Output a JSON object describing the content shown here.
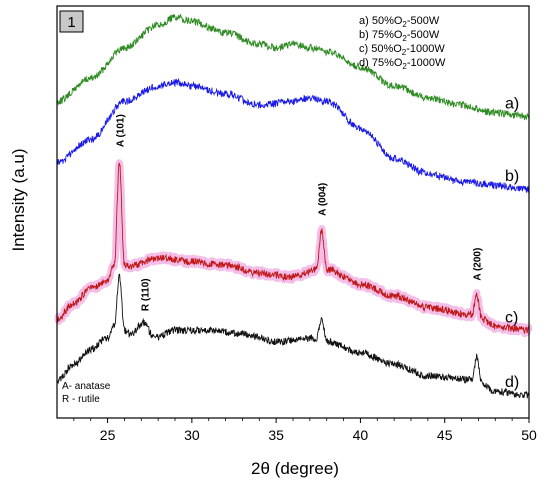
{
  "chart_data": {
    "type": "line",
    "panel_label": "1",
    "xlabel": "2θ (degree)",
    "ylabel": "Intensity (a.u)",
    "xlim": [
      22,
      50
    ],
    "xticks": [
      25,
      30,
      35,
      40,
      45,
      50
    ],
    "legend": [
      {
        "letter": "a)",
        "pre": "50%O",
        "sub": "2",
        "post": "-500W"
      },
      {
        "letter": "b)",
        "pre": "75%O",
        "sub": "2",
        "post": "-500W"
      },
      {
        "letter": "c)",
        "pre": "50%O",
        "sub": "2",
        "post": "-1000W"
      },
      {
        "letter": "d)",
        "pre": "75%O",
        "sub": "2",
        "post": "-1000W"
      }
    ],
    "series": [
      {
        "name": "a)",
        "color": "#2e8b22",
        "glow": null,
        "x": [
          22,
          24,
          26,
          28,
          29,
          30,
          32,
          34,
          35,
          36,
          37,
          38,
          40,
          42,
          44,
          46,
          48,
          50
        ],
        "y": [
          0.73,
          0.79,
          0.87,
          0.93,
          0.95,
          0.94,
          0.91,
          0.88,
          0.87,
          0.88,
          0.87,
          0.86,
          0.82,
          0.77,
          0.74,
          0.72,
          0.7,
          0.69
        ]
      },
      {
        "name": "b)",
        "color": "#1a1ae6",
        "glow": null,
        "x": [
          22,
          24,
          26,
          28,
          29,
          30,
          32,
          34,
          36,
          37,
          38,
          40,
          42,
          44,
          46,
          48,
          50
        ],
        "y": [
          0.57,
          0.63,
          0.73,
          0.77,
          0.78,
          0.77,
          0.75,
          0.72,
          0.73,
          0.74,
          0.73,
          0.66,
          0.58,
          0.54,
          0.52,
          0.51,
          0.5
        ]
      },
      {
        "name": "c)",
        "color": "#c01818",
        "glow": "#f0a8e0",
        "x": [
          22,
          23,
          24,
          25,
          25.4,
          25.7,
          26.0,
          26.5,
          28,
          30,
          32,
          34,
          36,
          37.4,
          37.7,
          38.0,
          40,
          42,
          44,
          46.6,
          46.9,
          47.2,
          48,
          50
        ],
        "y": [
          0.16,
          0.2,
          0.24,
          0.26,
          0.3,
          0.57,
          0.3,
          0.3,
          0.32,
          0.31,
          0.3,
          0.28,
          0.27,
          0.29,
          0.39,
          0.29,
          0.25,
          0.22,
          0.19,
          0.17,
          0.22,
          0.16,
          0.14,
          0.13
        ]
      },
      {
        "name": "d)",
        "color": "#111111",
        "glow": null,
        "x": [
          22,
          23,
          24,
          25,
          25.4,
          25.7,
          26.0,
          26.4,
          27.1,
          27.8,
          29,
          31,
          33,
          35,
          37.4,
          37.7,
          38.0,
          40,
          42,
          44,
          46.6,
          46.9,
          47.2,
          48,
          50
        ],
        "y": [
          0.0,
          0.04,
          0.08,
          0.11,
          0.14,
          0.27,
          0.13,
          0.12,
          0.15,
          0.11,
          0.13,
          0.13,
          0.12,
          0.1,
          0.11,
          0.16,
          0.1,
          0.07,
          0.04,
          0.01,
          0.0,
          0.06,
          -0.01,
          -0.03,
          -0.04
        ]
      }
    ],
    "peak_annotations": [
      {
        "label": "A (101)",
        "x": 25.7,
        "y": 0.61
      },
      {
        "label": "A (004)",
        "x": 37.7,
        "y": 0.43
      },
      {
        "label": "A (200)",
        "x": 46.9,
        "y": 0.26
      },
      {
        "label": "R (110)",
        "x": 27.2,
        "y": 0.18
      }
    ],
    "phase_notes": [
      "A- anatase",
      "R - rutile"
    ]
  }
}
